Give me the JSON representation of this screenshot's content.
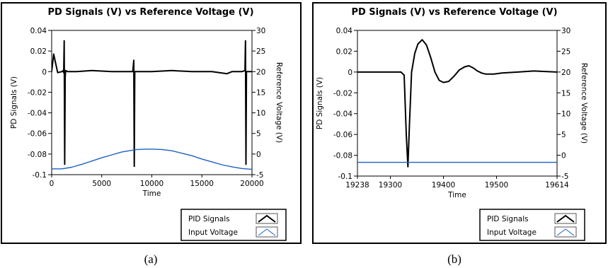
{
  "chart_data": [
    {
      "type": "line",
      "title": "PD Signals (V) vs Reference Voltage (V)",
      "xlabel": "Time",
      "ylabel": "PD Signals (V)",
      "y2label": "Reference Voltage (V)",
      "xlim": [
        0,
        20000
      ],
      "ylim": [
        -0.1,
        0.04
      ],
      "y2lim": [
        -5,
        30
      ],
      "x_ticks": [
        0,
        5000,
        10000,
        15000,
        20000
      ],
      "y_ticks": [
        -0.1,
        -0.08,
        -0.06,
        -0.04,
        -0.02,
        0,
        0.02,
        0.04
      ],
      "y2_ticks": [
        -5,
        0,
        5,
        10,
        15,
        20,
        25,
        30
      ],
      "x_tick_labels": [
        "0",
        "5000",
        "10000",
        "15000",
        "20000"
      ],
      "y_tick_labels": [
        "-0.1",
        "-0.08",
        "-0.06",
        "-0.04",
        "-0.02",
        "0",
        "0.02",
        "0.04"
      ],
      "y2_tick_labels": [
        "-5",
        "0",
        "5",
        "10",
        "15",
        "20",
        "25",
        "30"
      ],
      "legend_placement": "bottom-right",
      "legend": [
        "PID Signals",
        "Input Voltage"
      ],
      "caption": "(a)",
      "series": [
        {
          "name": "PID Signals",
          "color": "#000000",
          "axis": "left",
          "x": [
            0,
            200,
            600,
            1000,
            1150,
            1200,
            1250,
            1300,
            1350,
            1400,
            1600,
            2500,
            4000,
            6000,
            7500,
            8100,
            8200,
            8250,
            8300,
            8500,
            10000,
            12000,
            14000,
            16000,
            17500,
            18000,
            19000,
            19300,
            19350,
            19400,
            19450,
            19700,
            20000
          ],
          "y": [
            0.0,
            0.017,
            -0.001,
            0.0,
            0.001,
            -0.001,
            0.03,
            -0.09,
            -0.005,
            0.001,
            0.0,
            0.0,
            0.001,
            0.0,
            0.0,
            0.0,
            0.011,
            -0.092,
            0.0,
            0.0,
            0.0,
            0.001,
            0.0,
            0.0,
            -0.002,
            0.0,
            0.0,
            0.001,
            0.03,
            -0.09,
            0.0,
            0.0,
            0.0
          ]
        },
        {
          "name": "Input Voltage",
          "color": "#1f5fbf",
          "axis": "right",
          "x": [
            0,
            1000,
            2000,
            3000,
            4000,
            5000,
            6000,
            7000,
            8000,
            8500,
            9500,
            10000,
            11000,
            12000,
            13000,
            14000,
            15000,
            16000,
            17000,
            18000,
            19000,
            20000
          ],
          "y": [
            -3.6,
            -3.6,
            -3.2,
            -2.5,
            -1.7,
            -0.9,
            -0.2,
            0.5,
            0.9,
            1.1,
            1.2,
            1.2,
            1.1,
            0.8,
            0.2,
            -0.4,
            -1.2,
            -1.9,
            -2.6,
            -3.1,
            -3.5,
            -3.7
          ]
        }
      ]
    },
    {
      "type": "line",
      "title": "PD Signals (V) vs Reference Voltage (V)",
      "xlabel": "Time",
      "ylabel": "PD Signals (V)",
      "y2label": "Reference Voltage (V)",
      "xlim": [
        19238,
        19614
      ],
      "ylim": [
        -0.1,
        0.04
      ],
      "y2lim": [
        -5,
        30
      ],
      "x_ticks": [
        19238,
        19300,
        19400,
        19500,
        19614
      ],
      "y_ticks": [
        -0.1,
        -0.08,
        -0.06,
        -0.04,
        -0.02,
        0,
        0.02,
        0.04
      ],
      "y2_ticks": [
        -5,
        0,
        5,
        10,
        15,
        20,
        25,
        30
      ],
      "x_tick_labels": [
        "19238",
        "19300",
        "19400",
        "19500",
        "19614"
      ],
      "y_tick_labels": [
        "-0.1",
        "-0.08",
        "-0.06",
        "-0.04",
        "-0.02",
        "0",
        "0.02",
        "0.04"
      ],
      "y2_tick_labels": [
        "-5",
        "0",
        "5",
        "10",
        "15",
        "20",
        "25",
        "30"
      ],
      "legend_placement": "bottom-right",
      "legend": [
        "PID Signals",
        "Input Voltage"
      ],
      "caption": "(b)",
      "series": [
        {
          "name": "PID Signals",
          "color": "#000000",
          "axis": "left",
          "x": [
            19238,
            19260,
            19280,
            19300,
            19320,
            19326,
            19330,
            19333,
            19336,
            19340,
            19346,
            19352,
            19360,
            19368,
            19376,
            19384,
            19392,
            19400,
            19410,
            19420,
            19430,
            19440,
            19448,
            19456,
            19464,
            19472,
            19480,
            19495,
            19510,
            19540,
            19570,
            19614
          ],
          "y": [
            0.0,
            0.0,
            0.0,
            0.0,
            -0.0,
            -0.003,
            -0.06,
            -0.091,
            -0.05,
            0.0,
            0.018,
            0.027,
            0.031,
            0.026,
            0.014,
            0.0,
            -0.008,
            -0.01,
            -0.009,
            -0.004,
            0.002,
            0.005,
            0.006,
            0.004,
            0.001,
            -0.001,
            -0.002,
            -0.002,
            -0.001,
            0.0,
            0.001,
            0.0
          ]
        },
        {
          "name": "Input Voltage",
          "color": "#1f5fbf",
          "axis": "right",
          "x": [
            19238,
            19614
          ],
          "y": [
            -1.7,
            -1.7
          ]
        }
      ]
    }
  ]
}
